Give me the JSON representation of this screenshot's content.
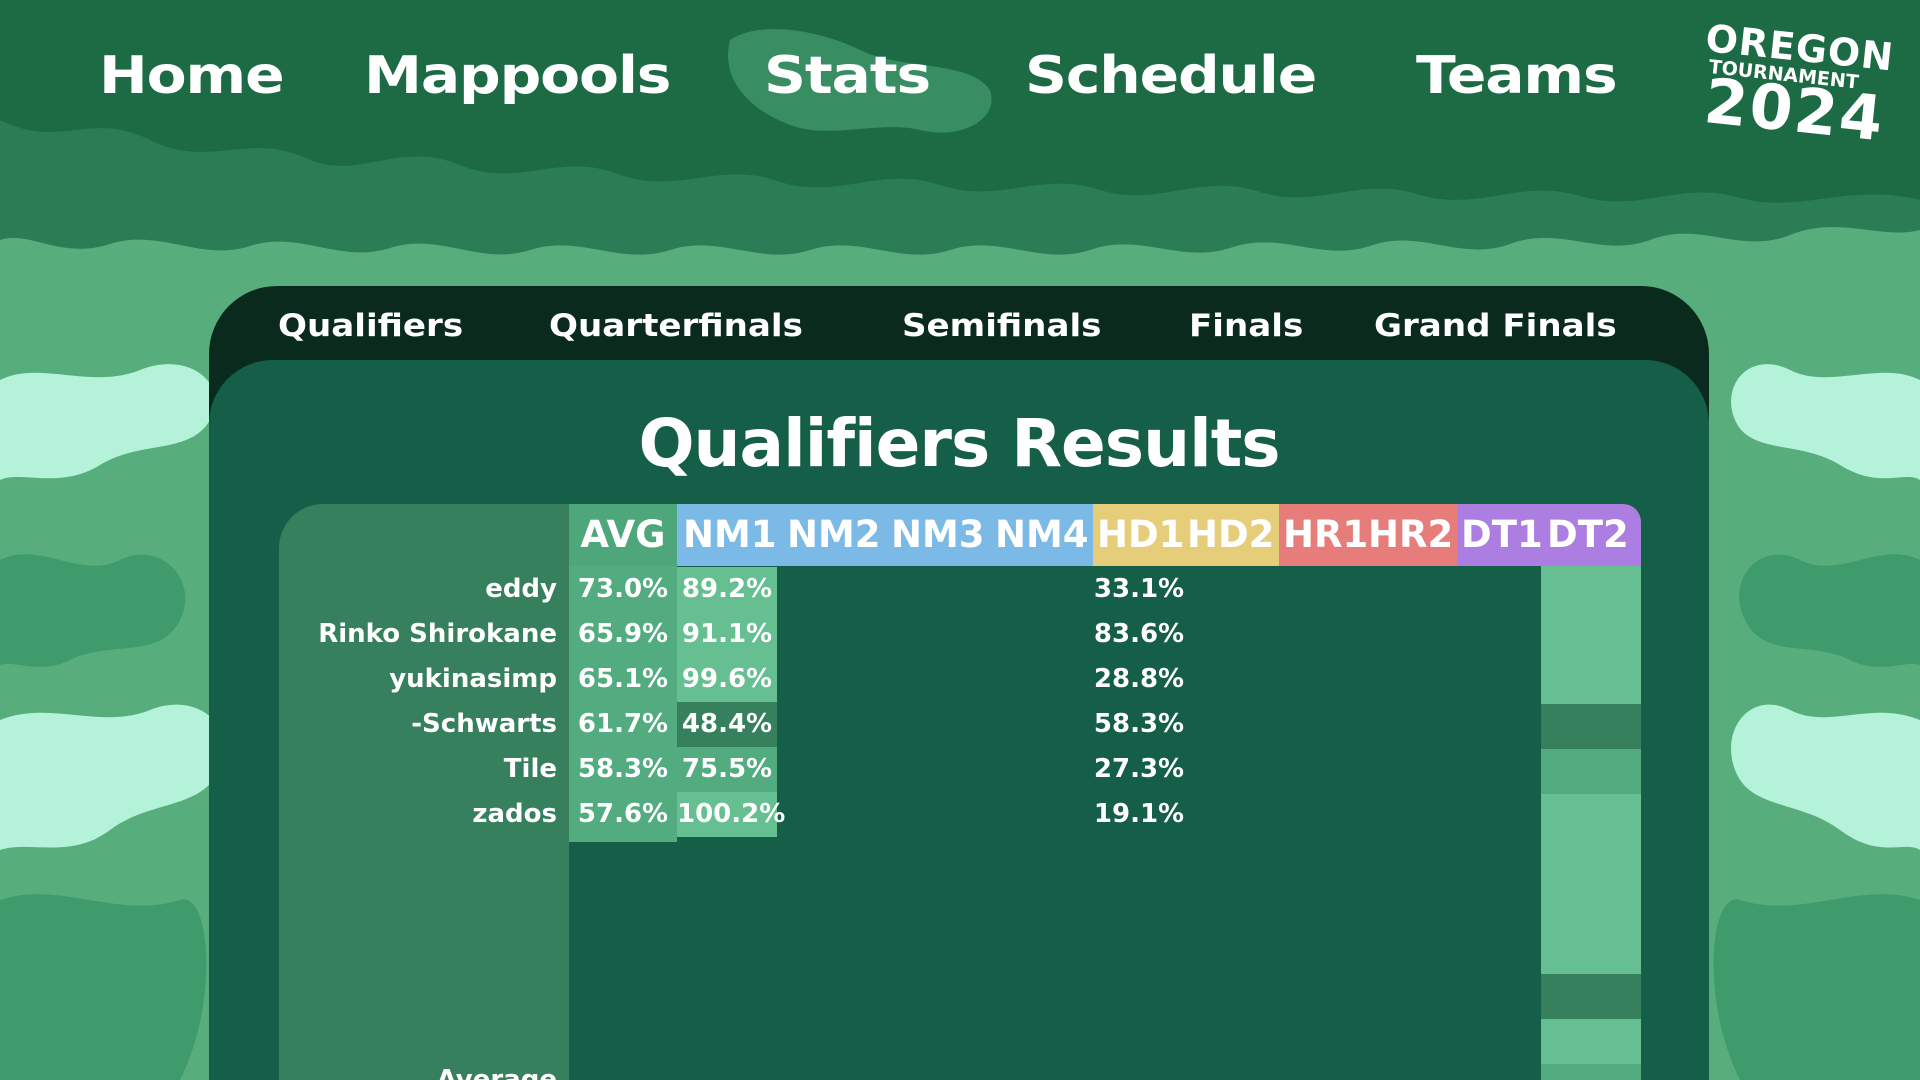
{
  "nav": {
    "links": [
      "Home",
      "Mappools",
      "Stats",
      "Schedule",
      "Teams"
    ]
  },
  "logo": {
    "line1": "OREGON",
    "line2": "TOURNAMENT",
    "line3": "2024"
  },
  "round_tabs": [
    "Qualifiers",
    "Quarterfinals",
    "Semifinals",
    "Finals",
    "Grand Finals"
  ],
  "page_title": "Qualifiers Results",
  "table": {
    "avg_header": "AVG",
    "nm_headers": [
      "NM1",
      "NM2",
      "NM3",
      "NM4"
    ],
    "hd_headers": [
      "HD1",
      "HD2"
    ],
    "hr_headers": [
      "HR1",
      "HR2"
    ],
    "dt_headers": [
      "DT1",
      "DT2"
    ],
    "rows": [
      {
        "name": "eddy",
        "avg": "73.0%",
        "nm1": "89.2%",
        "hd1": "33.1%"
      },
      {
        "name": "Rinko Shirokane",
        "avg": "65.9%",
        "nm1": "91.1%",
        "hd1": "83.6%"
      },
      {
        "name": "yukinasimp",
        "avg": "65.1%",
        "nm1": "99.6%",
        "hd1": "28.8%"
      },
      {
        "name": "-Schwarts",
        "avg": "61.7%",
        "nm1": "48.4%",
        "hd1": "58.3%"
      },
      {
        "name": "Tile",
        "avg": "58.3%",
        "nm1": "75.5%",
        "hd1": "27.3%"
      },
      {
        "name": "zados",
        "avg": "57.6%",
        "nm1": "100.2%",
        "hd1": "19.1%"
      }
    ],
    "average_label": "Average"
  },
  "colors": {
    "nm": "#7bb9e6",
    "hd": "#e6cd79",
    "hr": "#e77d7a",
    "dt": "#ad7ee2",
    "avg": "#4ea77a"
  }
}
